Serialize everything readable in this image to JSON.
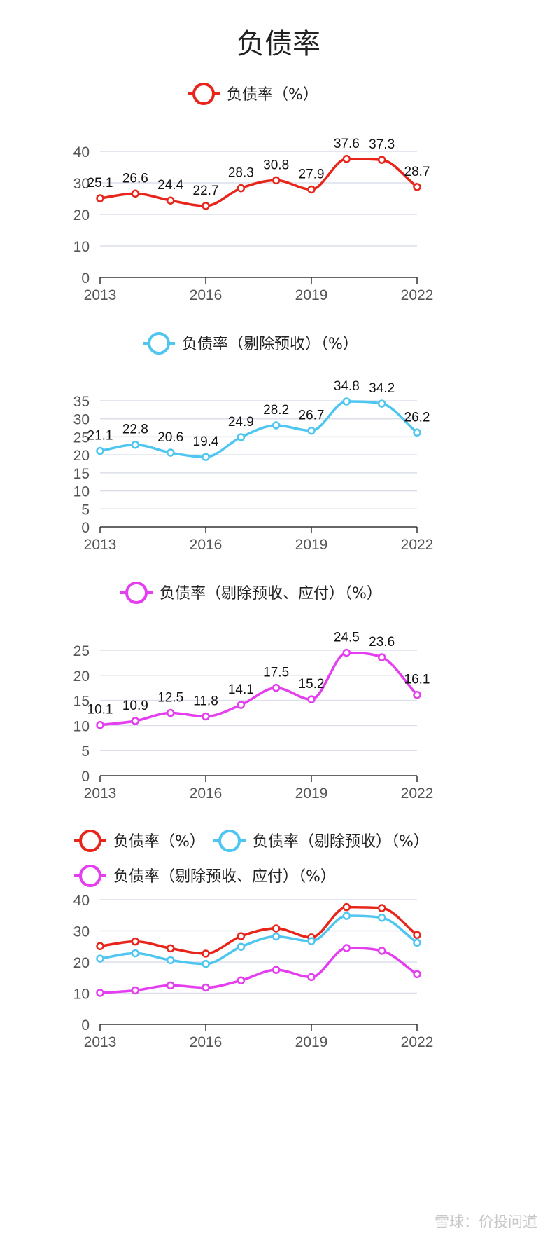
{
  "title": "负债率",
  "watermark": "雪球：价投问道",
  "colors": {
    "red": "#e8251b",
    "blue": "#4fc6f0",
    "magenta": "#e43ef0"
  },
  "chart_data": [
    {
      "type": "line",
      "x": [
        2013,
        2014,
        2015,
        2016,
        2017,
        2018,
        2019,
        2020,
        2021,
        2022
      ],
      "x_tick_labels": [
        "2013",
        "2016",
        "2019",
        "2022"
      ],
      "ylim": [
        0,
        40
      ],
      "y_ticks": [
        0,
        10,
        20,
        30,
        40
      ],
      "legend_position": "top-center",
      "grid": true,
      "show_data_labels": true,
      "series": [
        {
          "name": "负债率（%）",
          "color": "#e8251b",
          "values": [
            25.1,
            26.6,
            24.4,
            22.7,
            28.3,
            30.8,
            27.9,
            37.6,
            37.3,
            28.7
          ]
        }
      ]
    },
    {
      "type": "line",
      "x": [
        2013,
        2014,
        2015,
        2016,
        2017,
        2018,
        2019,
        2020,
        2021,
        2022
      ],
      "x_tick_labels": [
        "2013",
        "2016",
        "2019",
        "2022"
      ],
      "ylim": [
        0,
        35
      ],
      "y_ticks": [
        0,
        5,
        10,
        15,
        20,
        25,
        30,
        35
      ],
      "legend_position": "top-center",
      "grid": true,
      "show_data_labels": true,
      "series": [
        {
          "name": "负债率（剔除预收）（%）",
          "color": "#4fc6f0",
          "values": [
            21.1,
            22.8,
            20.6,
            19.4,
            24.9,
            28.2,
            26.7,
            34.8,
            34.2,
            26.2
          ]
        }
      ]
    },
    {
      "type": "line",
      "x": [
        2013,
        2014,
        2015,
        2016,
        2017,
        2018,
        2019,
        2020,
        2021,
        2022
      ],
      "x_tick_labels": [
        "2013",
        "2016",
        "2019",
        "2022"
      ],
      "ylim": [
        0,
        25
      ],
      "y_ticks": [
        0,
        5,
        10,
        15,
        20,
        25
      ],
      "legend_position": "top-center",
      "grid": true,
      "show_data_labels": true,
      "series": [
        {
          "name": "负债率（剔除预收、应付）（%）",
          "color": "#e43ef0",
          "values": [
            10.1,
            10.9,
            12.5,
            11.8,
            14.1,
            17.5,
            15.2,
            24.5,
            23.6,
            16.1
          ]
        }
      ]
    },
    {
      "type": "line",
      "x": [
        2013,
        2014,
        2015,
        2016,
        2017,
        2018,
        2019,
        2020,
        2021,
        2022
      ],
      "x_tick_labels": [
        "2013",
        "2016",
        "2019",
        "2022"
      ],
      "ylim": [
        0,
        40
      ],
      "y_ticks": [
        0,
        10,
        20,
        30,
        40
      ],
      "legend_position": "top-left",
      "grid": true,
      "show_data_labels": false,
      "series": [
        {
          "name": "负债率（%）",
          "color": "#e8251b",
          "values": [
            25.1,
            26.6,
            24.4,
            22.7,
            28.3,
            30.8,
            27.9,
            37.6,
            37.3,
            28.7
          ]
        },
        {
          "name": "负债率（剔除预收）（%）",
          "color": "#4fc6f0",
          "values": [
            21.1,
            22.8,
            20.6,
            19.4,
            24.9,
            28.2,
            26.7,
            34.8,
            34.2,
            26.2
          ]
        },
        {
          "name": "负债率（剔除预收、应付）（%）",
          "color": "#e43ef0",
          "values": [
            10.1,
            10.9,
            12.5,
            11.8,
            14.1,
            17.5,
            15.2,
            24.5,
            23.6,
            16.1
          ]
        }
      ]
    }
  ]
}
